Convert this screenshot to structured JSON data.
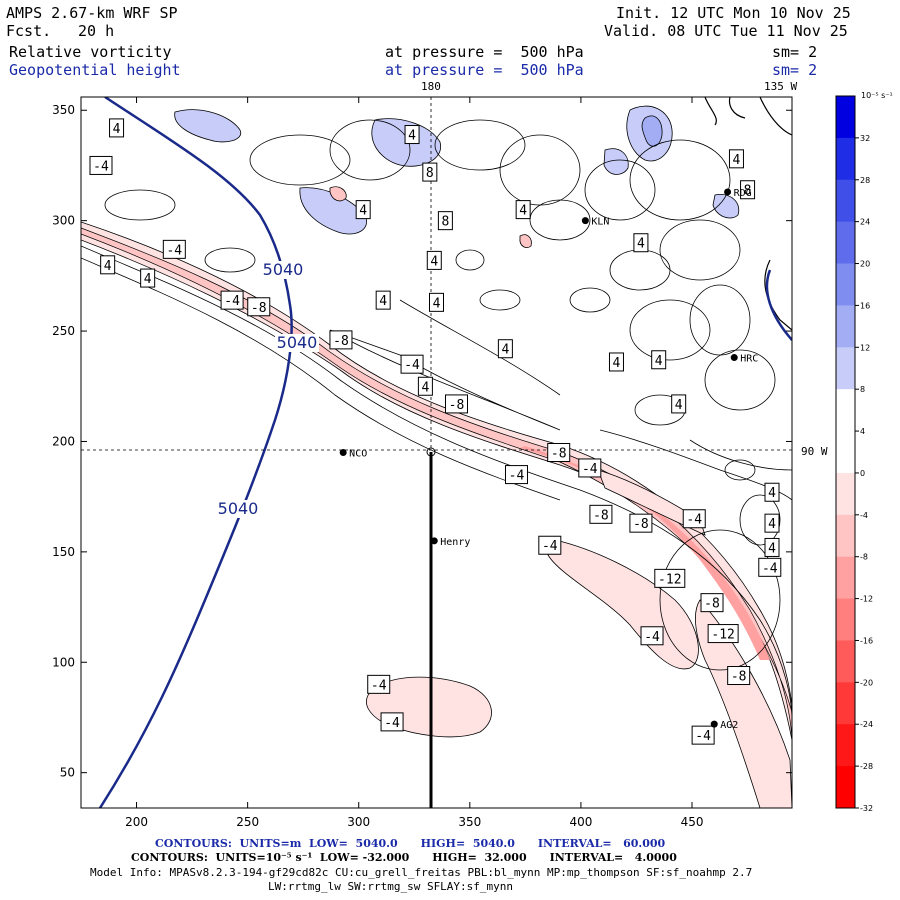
{
  "header": {
    "model": "AMPS 2.67-km WRF SP",
    "fcst_label": "Fcst.",
    "fcst_value": "20 h",
    "init": "Init. 12 UTC Mon 10 Nov 25",
    "valid": "Valid. 08 UTC Tue 11 Nov 25",
    "field1": "Relative vorticity",
    "field2": "Geopotential height",
    "level1": "at pressure =  500 hPa",
    "level2": "at pressure =  500 hPa",
    "sm1": "sm= 2",
    "sm2": "sm= 2",
    "lon180": "180",
    "lon135w": "135 W",
    "lon90w": "90 W"
  },
  "footer": {
    "line1": "CONTOURS:  UNITS=m  LOW=  5040.0      HIGH=  5040.0      INTERVAL=   60.000",
    "line2": "CONTOURS:  UNITS=10⁻⁵ s⁻¹  LOW= -32.000      HIGH=  32.000      INTERVAL=   4.0000",
    "line3": "Model Info: MPASv8.2.3-194-gf29cd82c CU:cu_grell_freitas PBL:bl_mynn MP:mp_thompson SF:sf_noahmp 2.7",
    "line4": "LW:rrtmg_lw SW:rrtmg_sw SFLAY:sf_mynn"
  },
  "colorbar": {
    "unit_label": "10⁻⁵ s⁻¹",
    "levels": [
      36,
      32,
      28,
      24,
      20,
      16,
      12,
      8,
      4,
      0,
      -4,
      -8,
      -12,
      -16,
      -20,
      -24,
      -28,
      -32
    ],
    "tick_labels": [
      "32",
      "28",
      "24",
      "20",
      "16",
      "12",
      "8",
      "4",
      "0",
      "-4",
      "-8",
      "-12",
      "-16",
      "-20",
      "-24",
      "-28",
      "-32"
    ],
    "colors": [
      "#0000e0",
      "#1f2ee6",
      "#3f4fe8",
      "#5f6dec",
      "#7f8cf0",
      "#a3adf4",
      "#c7cdf8",
      "#ffffff",
      "#ffffff",
      "#ffe3e3",
      "#ffc4c4",
      "#ffa1a1",
      "#ff7e7e",
      "#ff5b5b",
      "#ff3838",
      "#ff1818",
      "#ff0000"
    ]
  },
  "chart_data": {
    "type": "contour-map",
    "title": "Relative vorticity and Geopotential height at 500 hPa",
    "x_ticks": [
      200,
      250,
      300,
      350,
      400,
      450
    ],
    "y_ticks": [
      50,
      100,
      150,
      200,
      250,
      300,
      350
    ],
    "xlim": [
      175,
      495
    ],
    "ylim": [
      34,
      356
    ],
    "height_contour_value": "5040",
    "height_labels": [
      "5040",
      "5040",
      "5040"
    ],
    "stations": [
      {
        "name": "NCO",
        "x": 293,
        "y": 195
      },
      {
        "name": "KLN",
        "x": 402,
        "y": 300
      },
      {
        "name": "RDG",
        "x": 466,
        "y": 313
      },
      {
        "name": "HRC",
        "x": 469,
        "y": 238
      },
      {
        "name": "Henry",
        "x": 334,
        "y": 155
      },
      {
        "name": "AG2",
        "x": 460,
        "y": 72
      }
    ],
    "vorticity_labels": [
      {
        "v": "4",
        "x": 191,
        "y": 342
      },
      {
        "v": "-4",
        "x": 184,
        "y": 325
      },
      {
        "v": "-4",
        "x": 217,
        "y": 287
      },
      {
        "v": "4",
        "x": 187,
        "y": 280
      },
      {
        "v": "4",
        "x": 205,
        "y": 274
      },
      {
        "v": "-4",
        "x": 243,
        "y": 264
      },
      {
        "v": "-8",
        "x": 255,
        "y": 261
      },
      {
        "v": "-8",
        "x": 292,
        "y": 246
      },
      {
        "v": "-4",
        "x": 324,
        "y": 235
      },
      {
        "v": "4",
        "x": 330,
        "y": 225
      },
      {
        "v": "-8",
        "x": 344,
        "y": 217
      },
      {
        "v": "-8",
        "x": 390,
        "y": 195
      },
      {
        "v": "-4",
        "x": 371,
        "y": 185
      },
      {
        "v": "-4",
        "x": 404,
        "y": 188
      },
      {
        "v": "-8",
        "x": 409,
        "y": 167
      },
      {
        "v": "-8",
        "x": 427,
        "y": 163
      },
      {
        "v": "-4",
        "x": 451,
        "y": 165
      },
      {
        "v": "-4",
        "x": 386,
        "y": 153
      },
      {
        "v": "-12",
        "x": 440,
        "y": 138
      },
      {
        "v": "-8",
        "x": 459,
        "y": 127
      },
      {
        "v": "-12",
        "x": 464,
        "y": 113
      },
      {
        "v": "-4",
        "x": 432,
        "y": 112
      },
      {
        "v": "-8",
        "x": 471,
        "y": 94
      },
      {
        "v": "-4",
        "x": 309,
        "y": 90
      },
      {
        "v": "-4",
        "x": 315,
        "y": 73
      },
      {
        "v": "-4",
        "x": 455,
        "y": 67
      },
      {
        "v": "4",
        "x": 324,
        "y": 339
      },
      {
        "v": "8",
        "x": 332,
        "y": 322
      },
      {
        "v": "4",
        "x": 302,
        "y": 305
      },
      {
        "v": "4",
        "x": 374,
        "y": 305
      },
      {
        "v": "8",
        "x": 339,
        "y": 300
      },
      {
        "v": "4",
        "x": 334,
        "y": 282
      },
      {
        "v": "4",
        "x": 311,
        "y": 264
      },
      {
        "v": "4",
        "x": 335,
        "y": 263
      },
      {
        "v": "4",
        "x": 427,
        "y": 290
      },
      {
        "v": "4",
        "x": 366,
        "y": 242
      },
      {
        "v": "4",
        "x": 416,
        "y": 236
      },
      {
        "v": "4",
        "x": 435,
        "y": 237
      },
      {
        "v": "4",
        "x": 444,
        "y": 217
      },
      {
        "v": "4",
        "x": 470,
        "y": 328
      },
      {
        "v": "8",
        "x": 475,
        "y": 314
      },
      {
        "v": "4",
        "x": 486,
        "y": 177
      },
      {
        "v": "4",
        "x": 486,
        "y": 163
      },
      {
        "v": "4",
        "x": 486,
        "y": 152
      },
      {
        "v": "-4",
        "x": 485,
        "y": 143
      }
    ]
  }
}
